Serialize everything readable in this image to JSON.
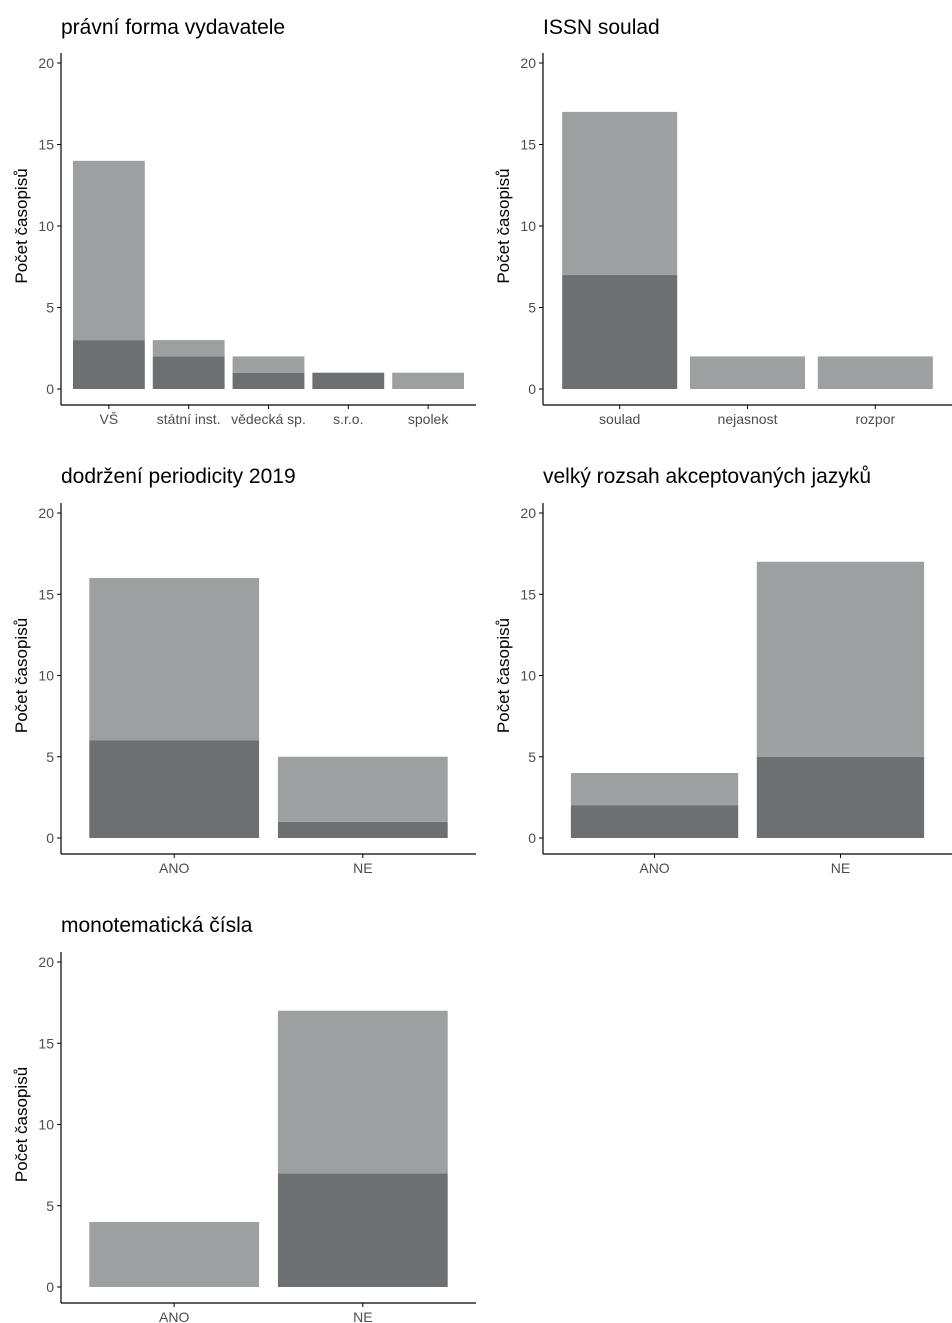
{
  "colors": {
    "dark": "#6d7072",
    "light": "#9da0a0",
    "axis": "#000000",
    "tick_text": "#4d4d4d"
  },
  "chart_data": [
    {
      "type": "bar",
      "stacked": true,
      "title": "právní forma vydavatele",
      "xlabel": "",
      "ylabel": "Počet časopisů",
      "ylim": [
        0,
        20
      ],
      "yticks": [
        0,
        5,
        10,
        15,
        20
      ],
      "categories": [
        "VŠ",
        "státní inst.",
        "vědecká sp.",
        "s.r.o.",
        "spolek"
      ],
      "series": [
        {
          "values": [
            3,
            2,
            1,
            1,
            0
          ]
        },
        {
          "values": [
            11,
            1,
            1,
            0,
            1
          ]
        }
      ]
    },
    {
      "type": "bar",
      "stacked": true,
      "title": "ISSN soulad",
      "xlabel": "",
      "ylabel": "Počet časopisů",
      "ylim": [
        0,
        20
      ],
      "yticks": [
        0,
        5,
        10,
        15,
        20
      ],
      "categories": [
        "soulad",
        "nejasnost",
        "rozpor"
      ],
      "series": [
        {
          "values": [
            7,
            0,
            0
          ]
        },
        {
          "values": [
            10,
            2,
            2
          ]
        }
      ]
    },
    {
      "type": "bar",
      "stacked": true,
      "title": "dodržení periodicity 2019",
      "xlabel": "",
      "ylabel": "Počet časopisů",
      "ylim": [
        0,
        20
      ],
      "yticks": [
        0,
        5,
        10,
        15,
        20
      ],
      "categories": [
        "ANO",
        "NE"
      ],
      "series": [
        {
          "values": [
            6,
            1
          ]
        },
        {
          "values": [
            10,
            4
          ]
        }
      ]
    },
    {
      "type": "bar",
      "stacked": true,
      "title": "velký rozsah akceptovaných jazyků",
      "xlabel": "",
      "ylabel": "Počet časopisů",
      "ylim": [
        0,
        20
      ],
      "yticks": [
        0,
        5,
        10,
        15,
        20
      ],
      "categories": [
        "ANO",
        "NE"
      ],
      "series": [
        {
          "values": [
            2,
            5
          ]
        },
        {
          "values": [
            2,
            12
          ]
        }
      ]
    },
    {
      "type": "bar",
      "stacked": true,
      "title": "monotematická čísla",
      "xlabel": "",
      "ylabel": "Počet časopisů",
      "ylim": [
        0,
        20
      ],
      "yticks": [
        0,
        5,
        10,
        15,
        20
      ],
      "categories": [
        "ANO",
        "NE"
      ],
      "series": [
        {
          "values": [
            0,
            7
          ]
        },
        {
          "values": [
            4,
            10
          ]
        }
      ]
    }
  ]
}
